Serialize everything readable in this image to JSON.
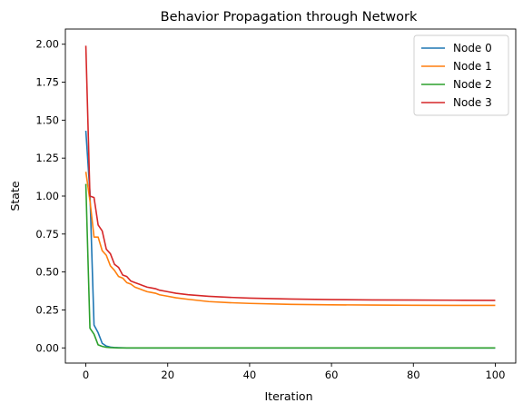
{
  "chart_data": {
    "type": "line",
    "title": "Behavior Propagation through Network",
    "xlabel": "Iteration",
    "ylabel": "State",
    "xlim": [
      -5,
      105
    ],
    "ylim": [
      -0.1,
      2.1
    ],
    "xticks": [
      0,
      20,
      40,
      60,
      80,
      100
    ],
    "xtick_labels": [
      "0",
      "20",
      "40",
      "60",
      "80",
      "100"
    ],
    "yticks": [
      0.0,
      0.25,
      0.5,
      0.75,
      1.0,
      1.25,
      1.5,
      1.75,
      2.0
    ],
    "ytick_labels": [
      "0.00",
      "0.25",
      "0.50",
      "0.75",
      "1.00",
      "1.25",
      "1.50",
      "1.75",
      "2.00"
    ],
    "grid": false,
    "legend_position": "top-right",
    "series": [
      {
        "name": "Node 0",
        "color": "#1f77b4",
        "x": [
          0,
          1,
          2,
          3,
          4,
          5,
          6,
          7,
          8,
          10,
          15,
          20,
          30,
          40,
          60,
          80,
          100
        ],
        "y": [
          1.43,
          1.02,
          0.15,
          0.1,
          0.03,
          0.012,
          0.005,
          0.002,
          0.001,
          0.0,
          0.0,
          0.0,
          0.0,
          0.0,
          0.0,
          0.0,
          0.0
        ]
      },
      {
        "name": "Node 1",
        "color": "#ff7f0e",
        "x": [
          0,
          1,
          2,
          3,
          4,
          5,
          6,
          7,
          8,
          9,
          10,
          11,
          12,
          13,
          14,
          15,
          16,
          17,
          18,
          20,
          22,
          25,
          30,
          35,
          40,
          50,
          60,
          70,
          80,
          90,
          100
        ],
        "y": [
          1.16,
          0.97,
          0.73,
          0.73,
          0.64,
          0.61,
          0.54,
          0.51,
          0.47,
          0.46,
          0.43,
          0.42,
          0.4,
          0.39,
          0.38,
          0.37,
          0.365,
          0.36,
          0.35,
          0.34,
          0.33,
          0.32,
          0.305,
          0.298,
          0.293,
          0.287,
          0.284,
          0.282,
          0.281,
          0.28,
          0.28
        ]
      },
      {
        "name": "Node 2",
        "color": "#2ca02c",
        "x": [
          0,
          1,
          2,
          3,
          4,
          5,
          6,
          7,
          8,
          10,
          15,
          20,
          30,
          40,
          60,
          80,
          100
        ],
        "y": [
          1.08,
          0.13,
          0.09,
          0.02,
          0.01,
          0.004,
          0.002,
          0.001,
          0.0,
          0.0,
          0.0,
          0.0,
          0.0,
          0.0,
          0.0,
          0.0,
          0.0
        ]
      },
      {
        "name": "Node 3",
        "color": "#d62728",
        "x": [
          0,
          1,
          2,
          3,
          4,
          5,
          6,
          7,
          8,
          9,
          10,
          11,
          12,
          13,
          14,
          15,
          16,
          17,
          18,
          20,
          22,
          25,
          30,
          35,
          40,
          50,
          60,
          70,
          80,
          90,
          100
        ],
        "y": [
          1.99,
          1.0,
          0.99,
          0.81,
          0.77,
          0.65,
          0.62,
          0.55,
          0.53,
          0.48,
          0.47,
          0.44,
          0.43,
          0.42,
          0.41,
          0.4,
          0.395,
          0.39,
          0.38,
          0.37,
          0.36,
          0.35,
          0.34,
          0.333,
          0.328,
          0.322,
          0.318,
          0.316,
          0.315,
          0.314,
          0.313
        ]
      }
    ]
  }
}
